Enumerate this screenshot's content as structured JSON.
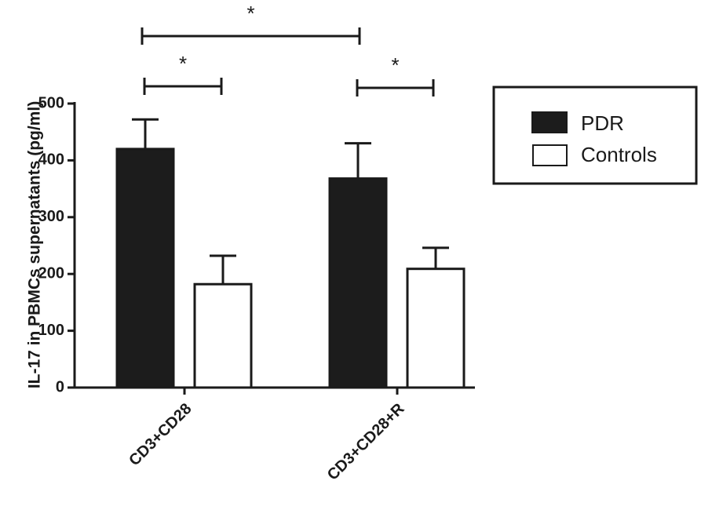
{
  "chart_data": {
    "type": "bar",
    "ylabel": "IL-17 in PBMCs supernatants (pg/ml)",
    "xlabel": "",
    "ylim": [
      0,
      500
    ],
    "yticks": [
      0,
      100,
      200,
      300,
      400,
      500
    ],
    "categories": [
      "CD3+CD28",
      "CD3+CD28+R"
    ],
    "series": [
      {
        "name": "PDR",
        "values": [
          420,
          368
        ],
        "errors": [
          52,
          62
        ],
        "color": "#1c1c1c"
      },
      {
        "name": "Controls",
        "values": [
          182,
          209
        ],
        "errors": [
          50,
          37
        ],
        "color": "#ffffff"
      }
    ],
    "significance": [
      {
        "label": "*",
        "between": "CD3+CD28 PDR vs CD3+CD28+R PDR"
      },
      {
        "label": "*",
        "between": "CD3+CD28 PDR vs CD3+CD28 Controls"
      },
      {
        "label": "*",
        "between": "CD3+CD28+R PDR vs CD3+CD28+R Controls"
      }
    ],
    "legend_position": "top-right"
  }
}
